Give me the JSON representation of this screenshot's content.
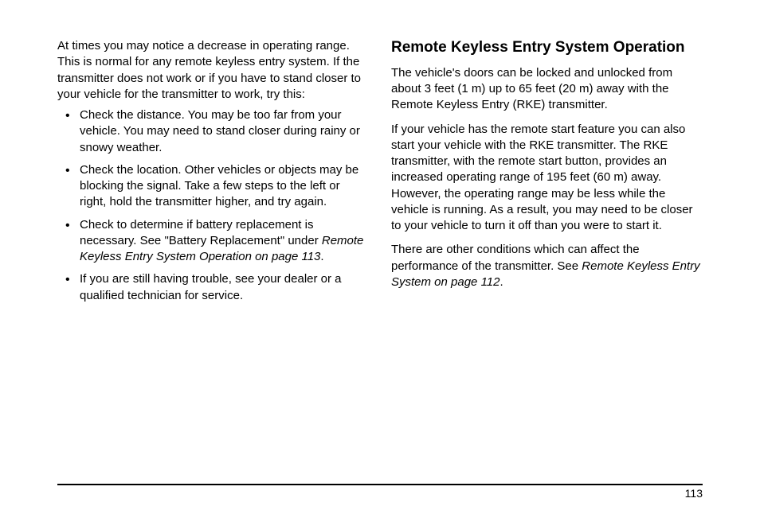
{
  "left_column": {
    "intro": "At times you may notice a decrease in operating range. This is normal for any remote keyless entry system. If the transmitter does not work or if you have to stand closer to your vehicle for the transmitter to work, try this:",
    "bullets": [
      {
        "text": "Check the distance. You may be too far from your vehicle. You may need to stand closer during rainy or snowy weather."
      },
      {
        "text": "Check the location. Other vehicles or objects may be blocking the signal. Take a few steps to the left or right, hold the transmitter higher, and try again."
      },
      {
        "text_part1": "Check to determine if battery replacement is necessary. See \"Battery Replacement\" under ",
        "italic_part": "Remote Keyless Entry System Operation on page 113",
        "text_part2": "."
      },
      {
        "text": "If you are still having trouble, see your dealer or a qualified technician for service."
      }
    ]
  },
  "right_column": {
    "heading": "Remote Keyless Entry System Operation",
    "para1": "The vehicle's doors can be locked and unlocked from about 3 feet (1 m) up to 65 feet (20 m) away with the Remote Keyless Entry (RKE) transmitter.",
    "para2": "If your vehicle has the remote start feature you can also start your vehicle with the RKE transmitter. The RKE transmitter, with the remote start button, provides an increased operating range of 195 feet (60 m) away. However, the operating range may be less while the vehicle is running. As a result, you may need to be closer to your vehicle to turn it off than you were to start it.",
    "para3_part1": "There are other conditions which can affect the performance of the transmitter. See ",
    "para3_italic": "Remote Keyless Entry System on page 112",
    "para3_part2": "."
  },
  "page_number": "113"
}
